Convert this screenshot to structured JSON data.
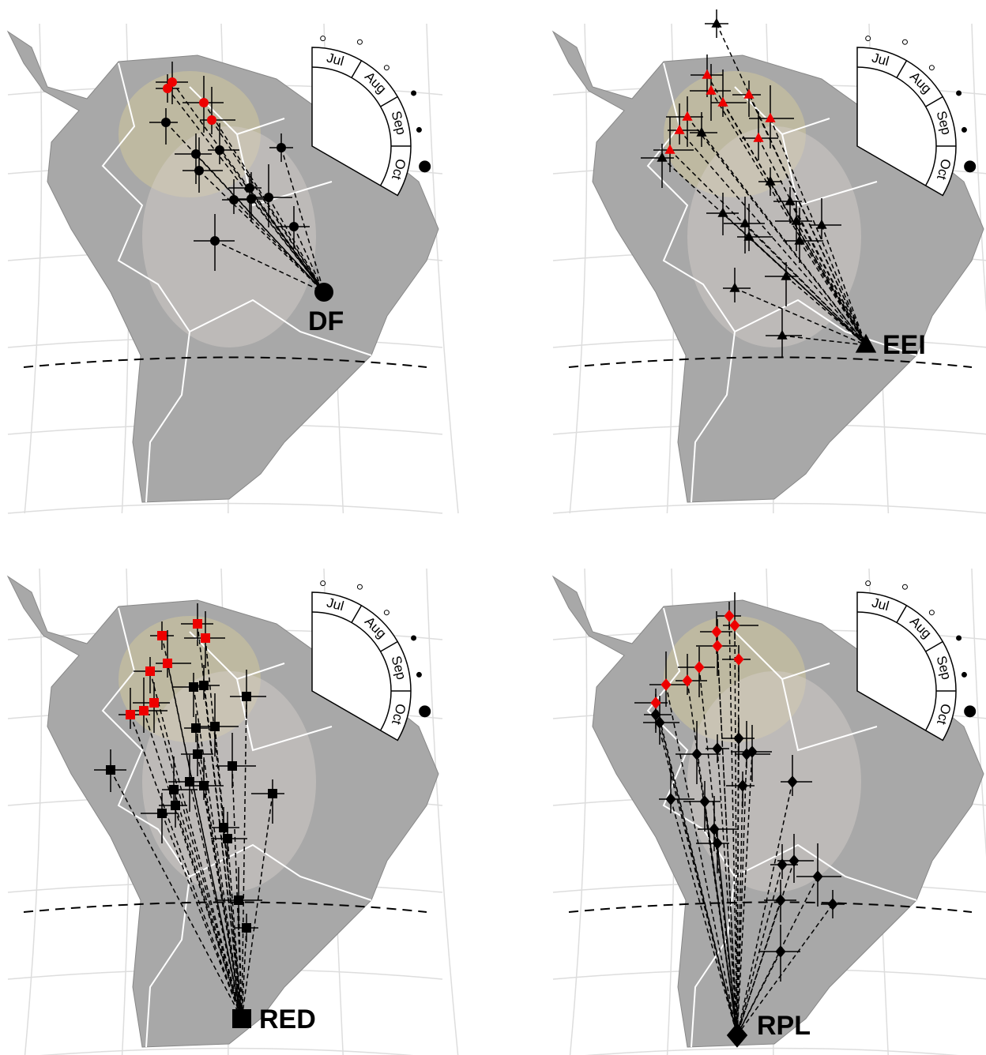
{
  "panels": [
    {
      "label": "DF",
      "months": [
        "Jul",
        "Aug",
        "Sep",
        "Oct"
      ]
    },
    {
      "label": "EEI",
      "months": [
        "Jul",
        "Aug",
        "Sep",
        "Oct"
      ]
    },
    {
      "label": "RED",
      "months": [
        "Jul",
        "Aug",
        "Sep",
        "Oct"
      ]
    },
    {
      "label": "RPL",
      "months": [
        "Jul",
        "Aug",
        "Sep",
        "Oct"
      ]
    }
  ]
}
